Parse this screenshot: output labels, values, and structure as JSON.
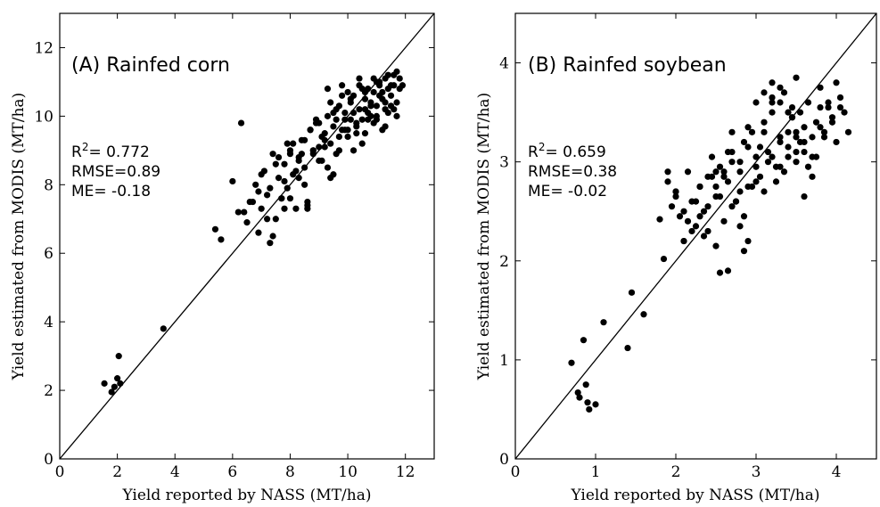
{
  "chart_data": [
    {
      "type": "scatter",
      "title": "(A) Rainfed corn",
      "xlabel": "Yield reported by NASS (MT/ha)",
      "ylabel": "Yield estimated from MODIS (MT/ha)",
      "xlim": [
        0,
        13
      ],
      "ylim": [
        0,
        13
      ],
      "xticks": [
        "0",
        "2",
        "4",
        "6",
        "8",
        "10",
        "12"
      ],
      "yticks": [
        "0",
        "2",
        "4",
        "6",
        "8",
        "10",
        "12"
      ],
      "stats": {
        "r2_label": "R",
        "r2_sup": "2",
        "r2_value": "= 0.772",
        "rmse": "RMSE=0.89",
        "me": "ME= -0.18"
      },
      "reference_line": "1:1",
      "x": [
        1.55,
        1.8,
        1.9,
        2.0,
        2.05,
        2.1,
        3.6,
        5.4,
        5.6,
        6.0,
        6.3,
        6.2,
        6.5,
        6.6,
        6.8,
        6.9,
        7.0,
        7.1,
        7.2,
        7.3,
        7.4,
        7.5,
        7.6,
        7.7,
        7.8,
        7.9,
        8.0,
        8.1,
        8.2,
        8.3,
        8.4,
        8.5,
        8.6,
        8.7,
        8.8,
        8.9,
        9.0,
        9.1,
        9.2,
        9.3,
        9.4,
        9.5,
        9.6,
        9.7,
        9.8,
        9.9,
        10.0,
        10.1,
        10.2,
        10.3,
        10.4,
        10.5,
        10.6,
        10.7,
        10.8,
        10.9,
        11.0,
        11.1,
        11.2,
        11.3,
        11.4,
        11.5,
        11.6,
        11.7,
        11.8,
        7.0,
        7.3,
        7.5,
        7.8,
        8.1,
        8.3,
        8.5,
        8.8,
        9.0,
        9.2,
        9.5,
        9.7,
        9.9,
        10.1,
        10.3,
        10.5,
        10.7,
        10.9,
        11.1,
        11.3,
        11.5,
        11.7,
        6.7,
        7.2,
        7.6,
        8.0,
        8.4,
        8.7,
        9.1,
        9.4,
        9.6,
        9.8,
        10.0,
        10.2,
        10.4,
        10.6,
        10.8,
        11.0,
        11.2,
        11.4,
        11.6,
        11.8,
        7.8,
        8.2,
        8.6,
        9.0,
        9.3,
        9.7,
        10.1,
        10.5,
        10.9,
        11.3,
        11.6,
        6.9,
        7.4,
        7.9,
        8.3,
        8.9,
        9.3,
        9.8,
        10.2,
        10.6,
        11.0,
        11.4,
        11.7,
        8.0,
        8.8,
        9.5,
        10.0,
        10.7,
        11.1,
        11.5,
        9.2,
        9.9,
        10.4,
        10.8,
        11.2,
        11.9,
        7.7,
        8.5,
        9.6,
        10.3,
        11.0,
        6.4,
        8.6,
        9.4,
        10.6,
        11.3
      ],
      "y": [
        2.2,
        1.95,
        2.1,
        2.35,
        3.0,
        2.2,
        3.8,
        6.7,
        6.4,
        8.1,
        9.8,
        7.2,
        6.9,
        7.5,
        8.0,
        6.6,
        7.3,
        8.4,
        7.7,
        6.3,
        8.9,
        7.0,
        8.2,
        7.6,
        8.6,
        7.9,
        9.0,
        8.3,
        7.3,
        8.8,
        9.3,
        8.5,
        7.4,
        9.6,
        8.9,
        9.8,
        9.1,
        8.7,
        9.5,
        10.0,
        9.2,
        9.7,
        8.9,
        10.3,
        9.6,
        10.1,
        9.4,
        9.9,
        10.6,
        9.7,
        10.2,
        9.9,
        10.5,
        10.8,
        10.0,
        10.7,
        10.3,
        10.9,
        10.5,
        11.1,
        10.8,
        10.6,
        11.2,
        10.4,
        10.8,
        8.3,
        7.9,
        8.6,
        8.1,
        9.2,
        8.7,
        8.0,
        9.0,
        9.8,
        9.3,
        10.1,
        9.0,
        9.6,
        10.4,
        9.5,
        10.8,
        10.1,
        9.8,
        11.0,
        10.2,
        10.9,
        10.0,
        7.5,
        7.0,
        8.8,
        7.6,
        8.9,
        9.6,
        9.4,
        10.4,
        9.9,
        10.6,
        9.6,
        10.1,
        10.9,
        9.5,
        10.3,
        10.0,
        10.7,
        11.2,
        10.2,
        11.1,
        7.3,
        8.4,
        7.5,
        8.7,
        10.8,
        9.4,
        10.5,
        9.2,
        11.1,
        10.4,
        10.9,
        7.8,
        6.5,
        9.2,
        8.2,
        9.9,
        8.5,
        10.9,
        9.0,
        10.7,
        9.9,
        10.1,
        11.3,
        8.9,
        9.0,
        8.3,
        10.7,
        9.9,
        10.6,
        10.3,
        9.1,
        9.9,
        11.1,
        10.4,
        9.6,
        10.9,
        7.6,
        9.3,
        10.2,
        9.8,
        11.0,
        7.2,
        7.3,
        8.2,
        10.2,
        9.7
      ]
    },
    {
      "type": "scatter",
      "title": "(B) Rainfed soybean",
      "xlabel": "Yield reported by NASS (MT/ha)",
      "ylabel": "Yield estimated from MODIS (MT/ha)",
      "xlim": [
        0,
        4.5
      ],
      "ylim": [
        0,
        4.5
      ],
      "xticks": [
        "0",
        "1",
        "2",
        "3",
        "4"
      ],
      "yticks": [
        "0",
        "1",
        "2",
        "3",
        "4"
      ],
      "stats": {
        "r2_label": "R",
        "r2_sup": "2",
        "r2_value": "= 0.659",
        "rmse": "RMSE=0.38",
        "me": "ME= -0.02"
      },
      "reference_line": "1:1",
      "x": [
        0.7,
        0.78,
        0.8,
        0.85,
        0.88,
        0.9,
        0.92,
        1.0,
        1.1,
        1.4,
        1.45,
        1.6,
        1.8,
        1.85,
        1.9,
        1.95,
        2.0,
        2.05,
        2.1,
        2.15,
        2.2,
        2.25,
        2.3,
        2.35,
        2.4,
        2.45,
        2.5,
        2.55,
        2.6,
        2.65,
        2.7,
        2.75,
        2.8,
        2.85,
        2.9,
        2.95,
        3.0,
        3.05,
        3.1,
        3.15,
        3.2,
        3.25,
        3.3,
        3.35,
        3.4,
        3.45,
        3.5,
        3.55,
        3.6,
        3.65,
        3.7,
        3.75,
        3.8,
        3.85,
        3.9,
        3.95,
        4.0,
        4.05,
        4.1,
        4.15,
        1.9,
        2.0,
        2.1,
        2.2,
        2.3,
        2.4,
        2.5,
        2.6,
        2.7,
        2.8,
        2.9,
        3.0,
        3.1,
        3.2,
        3.3,
        3.4,
        3.5,
        3.6,
        3.7,
        3.8,
        3.9,
        4.0,
        2.15,
        2.35,
        2.55,
        2.75,
        2.95,
        3.15,
        3.35,
        3.55,
        3.75,
        3.95,
        2.25,
        2.45,
        2.65,
        2.85,
        3.05,
        3.25,
        3.45,
        3.65,
        3.85,
        4.05,
        2.4,
        2.6,
        2.8,
        3.0,
        3.2,
        3.4,
        3.6,
        3.8,
        2.5,
        2.7,
        2.9,
        3.1,
        3.3,
        3.5,
        2.55,
        2.65,
        2.85,
        3.1,
        3.3,
        3.45,
        3.2,
        3.5,
        2.0,
        2.3,
        2.7,
        3.0,
        3.4,
        3.7,
        2.1,
        2.5,
        2.9,
        3.3,
        3.6,
        2.8,
        3.2,
        3.5
      ],
      "y": [
        0.97,
        0.67,
        0.62,
        1.2,
        0.75,
        0.57,
        0.5,
        0.55,
        1.38,
        1.12,
        1.68,
        1.46,
        2.42,
        2.02,
        2.8,
        2.55,
        2.7,
        2.45,
        2.2,
        2.9,
        2.6,
        2.35,
        2.75,
        2.5,
        2.85,
        3.05,
        2.65,
        2.95,
        2.4,
        2.8,
        3.0,
        2.6,
        2.9,
        3.2,
        2.75,
        3.3,
        3.05,
        2.85,
        3.4,
        3.1,
        3.6,
        2.95,
        3.25,
        3.7,
        3.15,
        3.45,
        3.3,
        3.5,
        3.2,
        3.6,
        3.05,
        3.4,
        3.75,
        3.3,
        3.55,
        3.45,
        3.2,
        3.65,
        3.5,
        3.3,
        2.9,
        2.7,
        2.5,
        2.3,
        2.75,
        2.55,
        2.9,
        2.85,
        3.1,
        2.7,
        3.15,
        2.95,
        3.3,
        3.05,
        3.2,
        3.5,
        3.1,
        3.35,
        3.25,
        3.55,
        3.6,
        3.8,
        2.4,
        2.25,
        2.65,
        2.6,
        2.75,
        3.0,
        2.9,
        3.2,
        3.05,
        3.4,
        2.6,
        2.85,
        3.1,
        2.45,
        3.15,
        2.8,
        3.55,
        2.95,
        3.25,
        3.55,
        2.3,
        2.9,
        3.0,
        2.8,
        3.5,
        3.3,
        3.1,
        3.35,
        2.15,
        2.55,
        3.35,
        2.7,
        3.6,
        3.0,
        1.88,
        1.9,
        2.1,
        3.7,
        2.95,
        3.45,
        3.8,
        3.85,
        2.65,
        2.45,
        3.3,
        3.6,
        3.05,
        2.85,
        2.2,
        2.75,
        2.2,
        3.75,
        2.65,
        2.35,
        3.65,
        3.25
      ]
    }
  ]
}
